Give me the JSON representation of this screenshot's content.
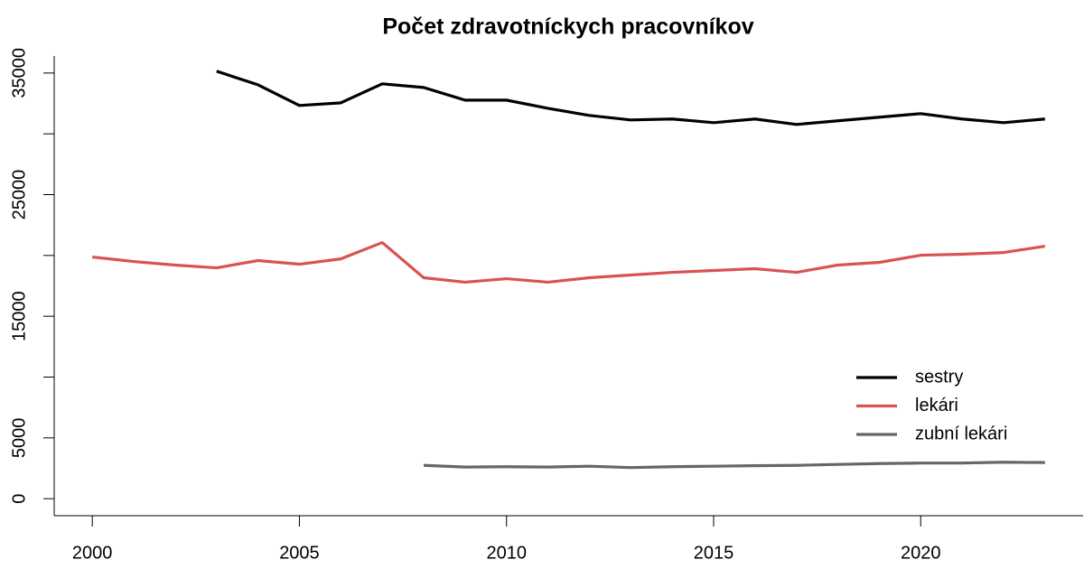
{
  "chart_data": {
    "type": "line",
    "title": "Počet zdravotníckych pracovníkov",
    "x": [
      2000,
      2001,
      2002,
      2003,
      2004,
      2005,
      2006,
      2007,
      2008,
      2009,
      2010,
      2011,
      2012,
      2013,
      2014,
      2015,
      2016,
      2017,
      2018,
      2019,
      2020,
      2021,
      2022,
      2023
    ],
    "series": [
      {
        "name": "sestry",
        "color": "#000000",
        "values": [
          null,
          null,
          null,
          35150,
          34030,
          32330,
          32550,
          34110,
          33810,
          32770,
          32770,
          32100,
          31510,
          31140,
          31220,
          30920,
          31220,
          30770,
          31070,
          31370,
          31660,
          31220,
          30920,
          31220
        ]
      },
      {
        "name": "lekári",
        "color": "#d95350",
        "values": [
          19870,
          19500,
          19210,
          18980,
          19580,
          19280,
          19720,
          21060,
          18170,
          17800,
          18090,
          17800,
          18170,
          18390,
          18610,
          18760,
          18910,
          18610,
          19210,
          19430,
          20020,
          20100,
          20240,
          20760
        ]
      },
      {
        "name": "zubní lekári",
        "color": "#666666",
        "values": [
          null,
          null,
          null,
          null,
          null,
          null,
          null,
          null,
          2740,
          2600,
          2630,
          2600,
          2670,
          2560,
          2630,
          2670,
          2710,
          2740,
          2820,
          2890,
          2930,
          2930,
          3000,
          2970
        ]
      }
    ],
    "xlim": [
      1999.08,
      2023.92
    ],
    "xticks": [
      2000,
      2005,
      2010,
      2015,
      2020
    ],
    "ylim": [
      -1400,
      36400
    ],
    "yticks": [
      0,
      5000,
      15000,
      25000,
      35000
    ],
    "yminor_ticks": [
      10000,
      20000,
      30000
    ],
    "legend": "right"
  }
}
